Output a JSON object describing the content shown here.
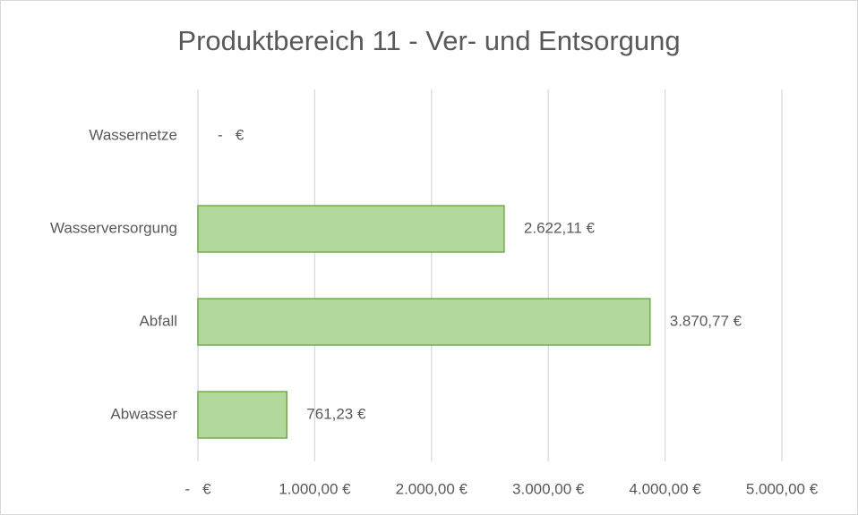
{
  "chart_data": {
    "type": "bar",
    "orientation": "horizontal",
    "title": "Produktbereich 11 - Ver- und Entsorgung",
    "categories": [
      "Wassernetze",
      "Wasserversorgung",
      "Abfall",
      "Abwasser"
    ],
    "values": [
      0,
      2622.11,
      3870.77,
      761.23
    ],
    "value_labels": [
      "-   €",
      "2.622,11 €",
      "3.870,77 €",
      "761,23 €"
    ],
    "color": "#b3d89c",
    "edge_color": "#70ad47",
    "xlim": [
      0,
      5000
    ],
    "xticks": [
      {
        "value": 0,
        "label": "-   €"
      },
      {
        "value": 1000,
        "label": "1.000,00 €"
      },
      {
        "value": 2000,
        "label": "2.000,00 €"
      },
      {
        "value": 3000,
        "label": "3.000,00 €"
      },
      {
        "value": 4000,
        "label": "4.000,00 €"
      },
      {
        "value": 5000,
        "label": "5.000,00 €"
      }
    ],
    "grid": true
  }
}
